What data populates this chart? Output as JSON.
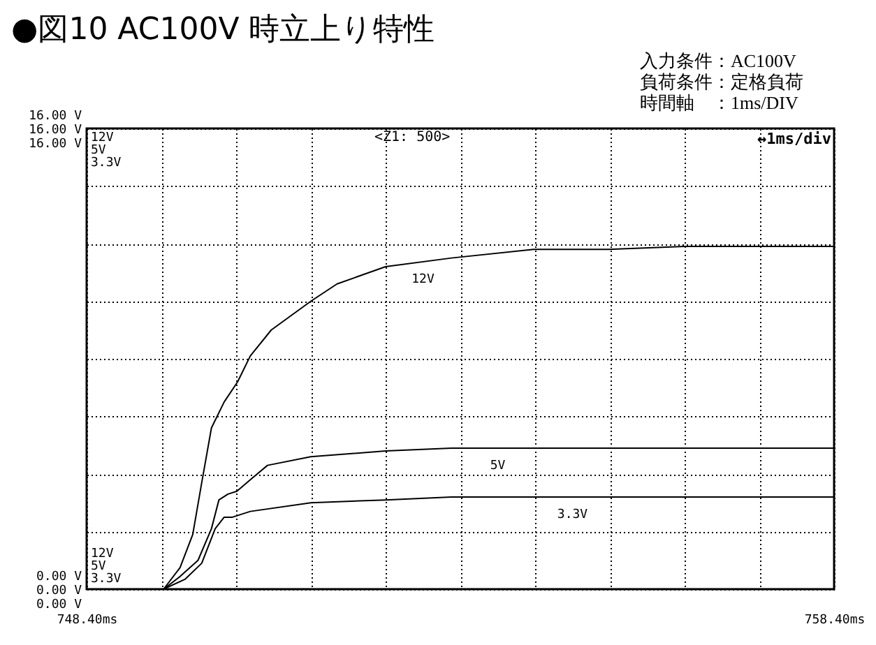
{
  "chart_data": {
    "type": "line",
    "title": "●図10 AC100V 時立上り特性",
    "annotations": [
      "入力条件：AC100V",
      "負荷条件：定格負荷",
      "時間軸　：1ms/DIV",
      "<Z1: 500>",
      "↔1ms/div"
    ],
    "xlim": [
      748.4,
      758.4
    ],
    "xticks": [
      {
        "value": 748.4,
        "label": "748.40ms"
      },
      {
        "value": 749.4,
        "label": null
      },
      {
        "value": 750.4,
        "label": null
      },
      {
        "value": 751.4,
        "label": null
      },
      {
        "value": 752.4,
        "label": null
      },
      {
        "value": 753.4,
        "label": null
      },
      {
        "value": 754.4,
        "label": null
      },
      {
        "value": 755.4,
        "label": null
      },
      {
        "value": 756.4,
        "label": null
      },
      {
        "value": 757.4,
        "label": null
      },
      {
        "value": 758.4,
        "label": "758.40ms"
      }
    ],
    "ylim": [
      0,
      16
    ],
    "yticks": [
      {
        "value": 0,
        "label": "0.00 V"
      },
      {
        "value": 2,
        "label": null
      },
      {
        "value": 4,
        "label": null
      },
      {
        "value": 6,
        "label": null
      },
      {
        "value": 8,
        "label": null
      },
      {
        "value": 10,
        "label": null
      },
      {
        "value": 12,
        "label": null
      },
      {
        "value": 14,
        "label": null
      },
      {
        "value": 16,
        "label": "16.00 V"
      }
    ],
    "grid": true,
    "legend": false,
    "line_style": "solid",
    "series": [
      {
        "name": "12V",
        "color": "#000000",
        "x": [
          749.43,
          749.65,
          749.82,
          749.94,
          750.07,
          750.24,
          750.42,
          750.59,
          750.87,
          751.4,
          751.75,
          752.4,
          753.28,
          754.38,
          755.38,
          756.4,
          758.4
        ],
        "values": [
          0,
          0.75,
          1.9,
          3.7,
          5.6,
          6.5,
          7.2,
          8.1,
          9.0,
          10.0,
          10.6,
          11.2,
          11.5,
          11.8,
          11.8,
          11.9,
          11.9
        ]
      },
      {
        "name": "5V",
        "color": "#000000",
        "x": [
          749.43,
          749.65,
          749.89,
          750.07,
          750.17,
          750.29,
          750.41,
          750.59,
          750.82,
          751.4,
          752.4,
          753.28,
          753.93,
          758.4
        ],
        "values": [
          0,
          0.44,
          1.0,
          2.1,
          3.1,
          3.3,
          3.4,
          3.8,
          4.3,
          4.6,
          4.8,
          4.9,
          4.9,
          4.9
        ]
      },
      {
        "name": "3.3V",
        "color": "#000000",
        "x": [
          749.43,
          749.72,
          749.94,
          750.12,
          750.24,
          750.35,
          750.59,
          751.4,
          752.4,
          753.28,
          758.4
        ],
        "values": [
          0,
          0.35,
          0.9,
          2.1,
          2.5,
          2.5,
          2.7,
          3.0,
          3.1,
          3.2,
          3.2
        ]
      }
    ]
  }
}
